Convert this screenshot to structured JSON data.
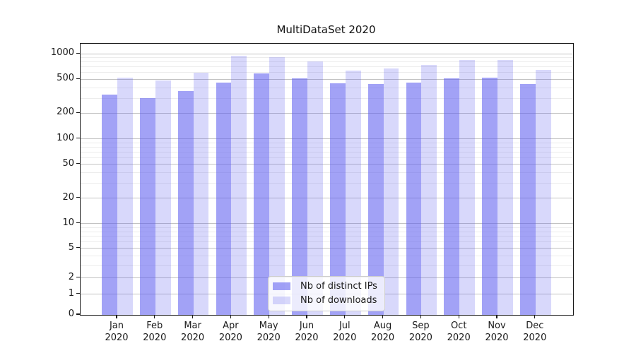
{
  "chart_data": {
    "type": "bar",
    "title": "MultiDataSet 2020",
    "categories": [
      "Jan",
      "Feb",
      "Mar",
      "Apr",
      "May",
      "Jun",
      "Jul",
      "Aug",
      "Sep",
      "Oct",
      "Nov",
      "Dec"
    ],
    "category_year": "2020",
    "series": [
      {
        "name": "Nb of distinct IPs",
        "values": [
          330,
          300,
          365,
          460,
          585,
          510,
          450,
          440,
          460,
          510,
          520,
          445
        ],
        "color": "#5e5ef0",
        "alpha": 0.58
      },
      {
        "name": "Nb of downloads",
        "values": [
          520,
          490,
          595,
          945,
          920,
          810,
          635,
          670,
          740,
          840,
          845,
          645
        ],
        "color": "#5e5ef0",
        "alpha": 0.24
      }
    ],
    "yscale": "asinh",
    "yticks": [
      0,
      1,
      2,
      5,
      10,
      20,
      50,
      100,
      200,
      500,
      1000
    ],
    "yticks_minor": [
      3,
      4,
      6,
      7,
      8,
      9,
      30,
      40,
      60,
      70,
      80,
      90,
      300,
      400,
      600,
      700,
      800,
      900
    ],
    "ylim": [
      0,
      1090
    ],
    "grid": true,
    "legend_position": "lower center",
    "colors": {
      "grid_major": "#c2c2c2",
      "grid_minor": "#ececec",
      "spine": "#1a1a1a",
      "bar_on_white_dark": "#a2a2f6",
      "bar_on_white_light": "#d8d8fb"
    }
  }
}
